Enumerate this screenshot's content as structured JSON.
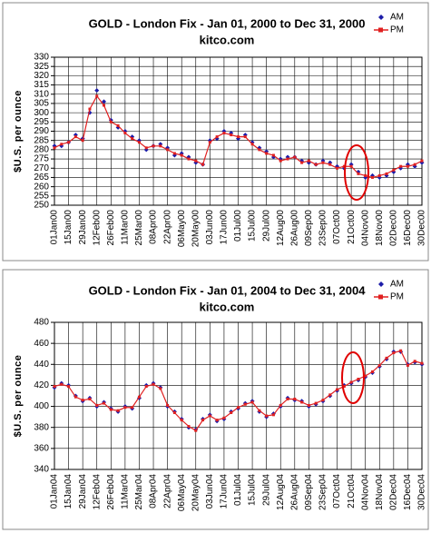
{
  "chart_data": [
    {
      "type": "line",
      "title": "GOLD - London Fix - Jan 01, 2000 to Dec 31, 2000",
      "subtitle": "kitco.com",
      "y_label": "$U.S. per ounce",
      "categories": [
        "01Jan00",
        null,
        "15Jan00",
        null,
        "29Jan00",
        null,
        "12Feb00",
        null,
        "26Feb00",
        null,
        "11Mar00",
        null,
        "25Mar00",
        null,
        "08Apr00",
        null,
        "22Apr00",
        null,
        "06May00",
        null,
        "20May00",
        null,
        "03Jun00",
        null,
        "17Jun00",
        null,
        "01Jul00",
        null,
        "15Jul00",
        null,
        "29Jul00",
        null,
        "12Aug00",
        null,
        "26Aug00",
        null,
        "09Sep00",
        null,
        "23Sep00",
        null,
        "07Oct00",
        null,
        "21Oct00",
        null,
        "04Nov00",
        null,
        "18Nov00",
        null,
        "02Dec00",
        null,
        "16Dec00",
        null,
        "30Dec00"
      ],
      "series": [
        {
          "name": "AM",
          "color": "#1c1ca8",
          "values": [
            282,
            282,
            284,
            288,
            286,
            300,
            312,
            306,
            296,
            292,
            290,
            287,
            285,
            280,
            282,
            283,
            281,
            277,
            278,
            276,
            273,
            272,
            285,
            286,
            290,
            289,
            286,
            288,
            284,
            281,
            279,
            276,
            275,
            276,
            276,
            274,
            273,
            272,
            274,
            273,
            271,
            270,
            272,
            268,
            265,
            266,
            265,
            266,
            268,
            270,
            272,
            271,
            273
          ]
        },
        {
          "name": "PM",
          "color": "#e02020",
          "values": [
            281,
            283,
            284,
            287,
            285,
            302,
            309,
            304,
            295,
            293,
            289,
            286,
            284,
            281,
            282,
            282,
            280,
            278,
            277,
            275,
            274,
            272,
            284,
            287,
            289,
            288,
            287,
            287,
            283,
            280,
            278,
            277,
            274,
            275,
            276,
            273,
            274,
            272,
            273,
            272,
            270,
            271,
            271,
            267,
            266,
            265,
            266,
            267,
            269,
            271,
            271,
            272,
            274
          ]
        }
      ],
      "ylim": [
        250,
        330
      ],
      "yticks": [
        250,
        255,
        260,
        265,
        270,
        275,
        280,
        285,
        290,
        295,
        300,
        305,
        310,
        315,
        320,
        325,
        330
      ],
      "grid": true
    },
    {
      "type": "line",
      "title": "GOLD - London Fix - Jan 01, 2004 to Dec 31, 2004",
      "subtitle": "kitco.com",
      "y_label": "$U.S. per ounce",
      "categories": [
        "01Jan04",
        null,
        "15Jan04",
        null,
        "29Jan04",
        null,
        "12Feb04",
        null,
        "26Feb04",
        null,
        "11Mar04",
        null,
        "25Mar04",
        null,
        "08Apr04",
        null,
        "22Apr04",
        null,
        "06May04",
        null,
        "20May04",
        null,
        "03Jun04",
        null,
        "17Jun04",
        null,
        "01Jul04",
        null,
        "15Jul04",
        null,
        "29Jul04",
        null,
        "12Aug04",
        null,
        "26Aug04",
        null,
        "09Sep04",
        null,
        "23Sep04",
        null,
        "07Oct04",
        null,
        "21Oct04",
        null,
        "04Nov04",
        null,
        "18Nov04",
        null,
        "02Dec04",
        null,
        "16Dec04",
        null,
        "30Dec04"
      ],
      "series": [
        {
          "name": "AM",
          "color": "#1c1ca8",
          "values": [
            418,
            422,
            420,
            410,
            405,
            408,
            400,
            404,
            398,
            395,
            400,
            398,
            408,
            420,
            422,
            418,
            400,
            395,
            388,
            380,
            378,
            388,
            392,
            386,
            388,
            395,
            398,
            403,
            405,
            395,
            390,
            393,
            400,
            408,
            406,
            405,
            400,
            402,
            405,
            410,
            415,
            420,
            422,
            425,
            428,
            432,
            438,
            445,
            452,
            452,
            440,
            442,
            440
          ]
        },
        {
          "name": "PM",
          "color": "#e02020",
          "values": [
            419,
            421,
            419,
            409,
            406,
            407,
            401,
            403,
            397,
            396,
            399,
            399,
            409,
            419,
            421,
            417,
            401,
            394,
            387,
            381,
            377,
            387,
            391,
            387,
            389,
            394,
            399,
            402,
            404,
            396,
            391,
            392,
            401,
            407,
            407,
            404,
            401,
            403,
            406,
            411,
            416,
            419,
            423,
            426,
            429,
            433,
            439,
            446,
            451,
            453,
            439,
            443,
            441
          ]
        }
      ],
      "ylim": [
        340,
        480
      ],
      "yticks": [
        340,
        360,
        380,
        400,
        420,
        440,
        460,
        480
      ],
      "grid": true
    }
  ]
}
